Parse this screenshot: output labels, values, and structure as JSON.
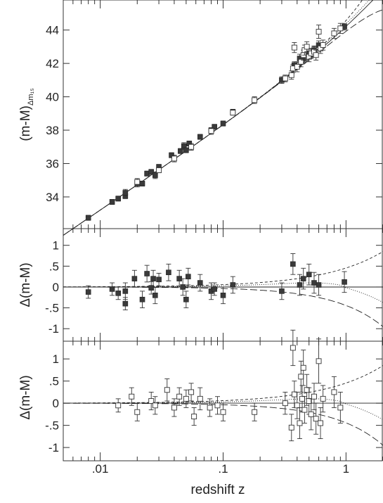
{
  "chart_data": {
    "type": "scatter",
    "xlabel": "redshift z",
    "xscale": "log",
    "xlim": [
      0.005,
      2.0
    ],
    "xtick_labels": [
      ".01",
      ".1",
      "1"
    ],
    "xtick_values": [
      0.01,
      0.1,
      1
    ],
    "panels": [
      {
        "id": "top",
        "ylabel": "(m-M)",
        "ylabel_subscript": "Δm₁₅",
        "ylim": [
          32.1,
          45.8
        ],
        "ytick_labels": [
          "34",
          "36",
          "38",
          "40",
          "42",
          "44"
        ],
        "ytick_values": [
          34,
          36,
          38,
          40,
          42,
          44
        ],
        "series": [
          {
            "marker": "filled-square",
            "points": [
              {
                "z": 0.008,
                "y": 32.75,
                "err": 0.15
              },
              {
                "z": 0.0125,
                "y": 33.7,
                "err": 0.15
              },
              {
                "z": 0.014,
                "y": 33.9,
                "err": 0.15
              },
              {
                "z": 0.016,
                "y": 34.05,
                "err": 0.15
              },
              {
                "z": 0.016,
                "y": 34.25,
                "err": 0.2
              },
              {
                "z": 0.02,
                "y": 34.8,
                "err": 0.2
              },
              {
                "z": 0.022,
                "y": 34.8,
                "err": 0.15
              },
              {
                "z": 0.024,
                "y": 35.4,
                "err": 0.15
              },
              {
                "z": 0.026,
                "y": 35.5,
                "err": 0.15
              },
              {
                "z": 0.028,
                "y": 35.3,
                "err": 0.2
              },
              {
                "z": 0.03,
                "y": 35.8,
                "err": 0.15
              },
              {
                "z": 0.038,
                "y": 36.5,
                "err": 0.15
              },
              {
                "z": 0.045,
                "y": 36.75,
                "err": 0.15
              },
              {
                "z": 0.048,
                "y": 37.05,
                "err": 0.2
              },
              {
                "z": 0.05,
                "y": 36.8,
                "err": 0.15
              },
              {
                "z": 0.053,
                "y": 37.2,
                "err": 0.15
              },
              {
                "z": 0.065,
                "y": 37.6,
                "err": 0.15
              },
              {
                "z": 0.08,
                "y": 38.0,
                "err": 0.15
              },
              {
                "z": 0.085,
                "y": 38.2,
                "err": 0.15
              },
              {
                "z": 0.1,
                "y": 38.4,
                "err": 0.15
              },
              {
                "z": 0.12,
                "y": 39.1,
                "err": 0.15
              },
              {
                "z": 0.3,
                "y": 41.0,
                "err": 0.2
              },
              {
                "z": 0.38,
                "y": 41.9,
                "err": 0.2
              },
              {
                "z": 0.42,
                "y": 42.3,
                "err": 0.25
              },
              {
                "z": 0.45,
                "y": 42.3,
                "err": 0.25
              },
              {
                "z": 0.5,
                "y": 42.6,
                "err": 0.25
              },
              {
                "z": 0.55,
                "y": 42.8,
                "err": 0.25
              },
              {
                "z": 0.6,
                "y": 43.1,
                "err": 0.25
              },
              {
                "z": 0.97,
                "y": 44.2,
                "err": 0.2
              }
            ]
          },
          {
            "marker": "open-square",
            "points": [
              {
                "z": 0.02,
                "y": 34.9,
                "err": 0.2
              },
              {
                "z": 0.03,
                "y": 35.6,
                "err": 0.15
              },
              {
                "z": 0.04,
                "y": 36.3,
                "err": 0.2
              },
              {
                "z": 0.055,
                "y": 37.0,
                "err": 0.2
              },
              {
                "z": 0.08,
                "y": 37.95,
                "err": 0.2
              },
              {
                "z": 0.12,
                "y": 39.05,
                "err": 0.15
              },
              {
                "z": 0.18,
                "y": 39.8,
                "err": 0.2
              },
              {
                "z": 0.32,
                "y": 41.1,
                "err": 0.2
              },
              {
                "z": 0.36,
                "y": 41.3,
                "err": 0.25
              },
              {
                "z": 0.37,
                "y": 41.7,
                "err": 0.25
              },
              {
                "z": 0.38,
                "y": 42.95,
                "err": 0.3
              },
              {
                "z": 0.4,
                "y": 41.8,
                "err": 0.3
              },
              {
                "z": 0.43,
                "y": 42.1,
                "err": 0.3
              },
              {
                "z": 0.45,
                "y": 42.5,
                "err": 0.3
              },
              {
                "z": 0.46,
                "y": 42.8,
                "err": 0.3
              },
              {
                "z": 0.48,
                "y": 43.0,
                "err": 0.3
              },
              {
                "z": 0.5,
                "y": 42.4,
                "err": 0.3
              },
              {
                "z": 0.52,
                "y": 42.6,
                "err": 0.3
              },
              {
                "z": 0.55,
                "y": 42.7,
                "err": 0.3
              },
              {
                "z": 0.57,
                "y": 42.5,
                "err": 0.3
              },
              {
                "z": 0.6,
                "y": 43.9,
                "err": 0.4
              },
              {
                "z": 0.62,
                "y": 42.9,
                "err": 0.3
              },
              {
                "z": 0.65,
                "y": 43.1,
                "err": 0.3
              },
              {
                "z": 0.8,
                "y": 43.8,
                "err": 0.3
              },
              {
                "z": 0.9,
                "y": 44.1,
                "err": 0.3
              }
            ]
          }
        ]
      },
      {
        "id": "middle",
        "ylabel": "Δ(m-M)",
        "ylim": [
          -1.3,
          1.4
        ],
        "ytick_labels": [
          "-1",
          "-.5",
          "0",
          ".5",
          "1"
        ],
        "ytick_values": [
          -1,
          -0.5,
          0,
          0.5,
          1
        ],
        "series": [
          {
            "marker": "filled-square",
            "points": [
              {
                "z": 0.008,
                "y": -0.12,
                "err": 0.15
              },
              {
                "z": 0.0125,
                "y": -0.05,
                "err": 0.15
              },
              {
                "z": 0.014,
                "y": -0.15,
                "err": 0.15
              },
              {
                "z": 0.016,
                "y": -0.1,
                "err": 0.2
              },
              {
                "z": 0.016,
                "y": -0.4,
                "err": 0.15
              },
              {
                "z": 0.019,
                "y": 0.2,
                "err": 0.2
              },
              {
                "z": 0.022,
                "y": -0.3,
                "err": 0.2
              },
              {
                "z": 0.024,
                "y": 0.32,
                "err": 0.2
              },
              {
                "z": 0.026,
                "y": -0.02,
                "err": 0.15
              },
              {
                "z": 0.027,
                "y": 0.2,
                "err": 0.2
              },
              {
                "z": 0.028,
                "y": -0.2,
                "err": 0.2
              },
              {
                "z": 0.03,
                "y": 0.18,
                "err": 0.15
              },
              {
                "z": 0.036,
                "y": 0.35,
                "err": 0.2
              },
              {
                "z": 0.044,
                "y": 0.2,
                "err": 0.2
              },
              {
                "z": 0.047,
                "y": 0.0,
                "err": 0.2
              },
              {
                "z": 0.05,
                "y": -0.3,
                "err": 0.2
              },
              {
                "z": 0.052,
                "y": 0.25,
                "err": 0.2
              },
              {
                "z": 0.065,
                "y": 0.1,
                "err": 0.2
              },
              {
                "z": 0.08,
                "y": -0.1,
                "err": 0.2
              },
              {
                "z": 0.085,
                "y": -0.05,
                "err": 0.15
              },
              {
                "z": 0.1,
                "y": -0.2,
                "err": 0.2
              },
              {
                "z": 0.12,
                "y": 0.05,
                "err": 0.2
              },
              {
                "z": 0.3,
                "y": -0.1,
                "err": 0.2
              },
              {
                "z": 0.37,
                "y": 0.55,
                "err": 0.25
              },
              {
                "z": 0.42,
                "y": 0.05,
                "err": 0.25
              },
              {
                "z": 0.45,
                "y": 0.2,
                "err": 0.25
              },
              {
                "z": 0.5,
                "y": 0.3,
                "err": 0.25
              },
              {
                "z": 0.55,
                "y": 0.1,
                "err": 0.25
              },
              {
                "z": 0.6,
                "y": 0.05,
                "err": 0.25
              },
              {
                "z": 0.97,
                "y": 0.12,
                "err": 0.25
              }
            ]
          }
        ]
      },
      {
        "id": "bottom",
        "ylabel": "Δ(m-M)",
        "ylim": [
          -1.3,
          1.4
        ],
        "ytick_labels": [
          "-1",
          "-.5",
          "0",
          ".5",
          "1"
        ],
        "ytick_values": [
          -1,
          -0.5,
          0,
          0.5,
          1
        ],
        "series": [
          {
            "marker": "open-square",
            "points": [
              {
                "z": 0.014,
                "y": -0.05,
                "err": 0.15
              },
              {
                "z": 0.018,
                "y": 0.15,
                "err": 0.2
              },
              {
                "z": 0.02,
                "y": -0.2,
                "err": 0.2
              },
              {
                "z": 0.026,
                "y": 0.05,
                "err": 0.2
              },
              {
                "z": 0.028,
                "y": -0.05,
                "err": 0.2
              },
              {
                "z": 0.035,
                "y": 0.3,
                "err": 0.25
              },
              {
                "z": 0.04,
                "y": -0.1,
                "err": 0.2
              },
              {
                "z": 0.044,
                "y": 0.15,
                "err": 0.2
              },
              {
                "z": 0.05,
                "y": 0.1,
                "err": 0.2
              },
              {
                "z": 0.055,
                "y": 0.25,
                "err": 0.2
              },
              {
                "z": 0.058,
                "y": -0.3,
                "err": 0.2
              },
              {
                "z": 0.065,
                "y": 0.1,
                "err": 0.25
              },
              {
                "z": 0.078,
                "y": -0.1,
                "err": 0.2
              },
              {
                "z": 0.09,
                "y": -0.05,
                "err": 0.2
              },
              {
                "z": 0.1,
                "y": -0.2,
                "err": 0.2
              },
              {
                "z": 0.18,
                "y": -0.2,
                "err": 0.2
              },
              {
                "z": 0.32,
                "y": 0.0,
                "err": 0.25
              },
              {
                "z": 0.36,
                "y": -0.55,
                "err": 0.3
              },
              {
                "z": 0.37,
                "y": 1.25,
                "err": 0.4
              },
              {
                "z": 0.38,
                "y": 0.2,
                "err": 0.3
              },
              {
                "z": 0.4,
                "y": -0.05,
                "err": 0.3
              },
              {
                "z": 0.42,
                "y": -0.45,
                "err": 0.35
              },
              {
                "z": 0.43,
                "y": 0.6,
                "err": 0.35
              },
              {
                "z": 0.44,
                "y": 0.1,
                "err": 0.3
              },
              {
                "z": 0.45,
                "y": 0.8,
                "err": 0.4
              },
              {
                "z": 0.46,
                "y": -0.15,
                "err": 0.3
              },
              {
                "z": 0.48,
                "y": 0.3,
                "err": 0.35
              },
              {
                "z": 0.5,
                "y": 0.05,
                "err": 0.3
              },
              {
                "z": 0.52,
                "y": -0.25,
                "err": 0.35
              },
              {
                "z": 0.55,
                "y": 0.15,
                "err": 0.3
              },
              {
                "z": 0.57,
                "y": -0.35,
                "err": 0.35
              },
              {
                "z": 0.6,
                "y": 0.95,
                "err": 0.5
              },
              {
                "z": 0.62,
                "y": -0.45,
                "err": 0.35
              },
              {
                "z": 0.65,
                "y": 0.1,
                "err": 0.3
              },
              {
                "z": 0.8,
                "y": 0.25,
                "err": 0.35
              },
              {
                "z": 0.9,
                "y": -0.1,
                "err": 0.35
              }
            ]
          }
        ]
      }
    ]
  }
}
